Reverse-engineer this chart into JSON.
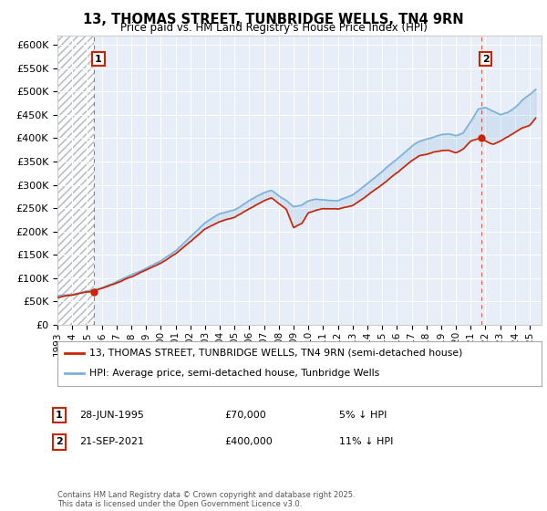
{
  "title": "13, THOMAS STREET, TUNBRIDGE WELLS, TN4 9RN",
  "subtitle": "Price paid vs. HM Land Registry's House Price Index (HPI)",
  "legend_line1": "13, THOMAS STREET, TUNBRIDGE WELLS, TN4 9RN (semi-detached house)",
  "legend_line2": "HPI: Average price, semi-detached house, Tunbridge Wells",
  "annotation1_date": "28-JUN-1995",
  "annotation1_price": "£70,000",
  "annotation1_hpi": "5% ↓ HPI",
  "annotation2_date": "21-SEP-2021",
  "annotation2_price": "£400,000",
  "annotation2_hpi": "11% ↓ HPI",
  "footer": "Contains HM Land Registry data © Crown copyright and database right 2025.\nThis data is licensed under the Open Government Licence v3.0.",
  "price_color": "#cc2200",
  "hpi_color": "#7bb0d8",
  "background_color": "#e8eef8",
  "ylim": [
    0,
    620000
  ],
  "ytick_step": 50000,
  "sale1_year": 1995.48,
  "sale1_price": 70000,
  "sale2_year": 2021.72,
  "sale2_price": 400000
}
